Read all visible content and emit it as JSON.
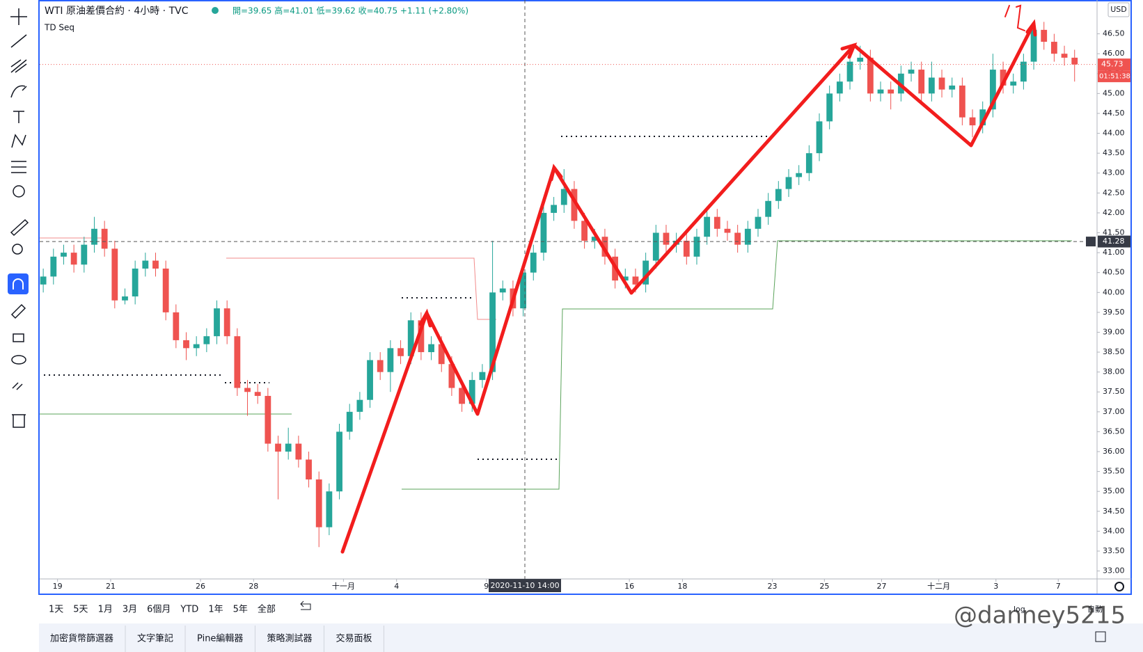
{
  "header": {
    "symbol": "WTI 原油差價合約 · 4小時 · TVC",
    "ohlc": "開=39.65 高=41.01 低=39.62 收=40.75 +1.11 (+2.80%)",
    "indicator": "TD Seq"
  },
  "chart_data": {
    "type": "candlestick",
    "currency": "USD",
    "up_color": "#26a69a",
    "down_color": "#ef5350",
    "candles": [
      [
        40.2,
        40.6,
        40.0,
        40.4
      ],
      [
        40.4,
        41.1,
        40.2,
        40.9
      ],
      [
        40.9,
        41.2,
        40.7,
        41.0
      ],
      [
        41.0,
        41.2,
        40.5,
        40.7
      ],
      [
        40.7,
        41.4,
        40.5,
        41.2
      ],
      [
        41.2,
        41.9,
        41.0,
        41.6
      ],
      [
        41.6,
        41.8,
        40.9,
        41.1
      ],
      [
        41.1,
        41.3,
        39.6,
        39.8
      ],
      [
        39.8,
        40.1,
        39.7,
        39.9
      ],
      [
        39.9,
        40.8,
        39.7,
        40.6
      ],
      [
        40.6,
        41.0,
        40.4,
        40.8
      ],
      [
        40.8,
        41.0,
        40.4,
        40.6
      ],
      [
        40.6,
        40.8,
        39.3,
        39.5
      ],
      [
        39.5,
        39.7,
        38.6,
        38.8
      ],
      [
        38.8,
        39.0,
        38.3,
        38.6
      ],
      [
        38.6,
        38.9,
        38.4,
        38.7
      ],
      [
        38.7,
        39.1,
        38.5,
        38.9
      ],
      [
        38.9,
        39.8,
        38.7,
        39.6
      ],
      [
        39.6,
        39.8,
        38.7,
        38.9
      ],
      [
        38.9,
        39.1,
        37.4,
        37.6
      ],
      [
        37.6,
        37.8,
        36.9,
        37.5
      ],
      [
        37.5,
        37.7,
        37.2,
        37.4
      ],
      [
        37.4,
        37.6,
        36.0,
        36.2
      ],
      [
        36.2,
        36.4,
        34.8,
        36.0
      ],
      [
        36.0,
        36.6,
        35.8,
        36.2
      ],
      [
        36.2,
        36.4,
        35.6,
        35.8
      ],
      [
        35.8,
        36.0,
        35.1,
        35.3
      ],
      [
        35.3,
        35.5,
        33.6,
        34.1
      ],
      [
        34.1,
        35.2,
        33.9,
        35.0
      ],
      [
        35.0,
        36.7,
        34.8,
        36.5
      ],
      [
        36.5,
        37.2,
        36.3,
        37.0
      ],
      [
        37.0,
        37.5,
        36.8,
        37.3
      ],
      [
        37.3,
        38.5,
        37.1,
        38.3
      ],
      [
        38.3,
        38.5,
        37.8,
        38.0
      ],
      [
        38.0,
        38.8,
        37.5,
        38.6
      ],
      [
        38.6,
        38.8,
        38.2,
        38.4
      ],
      [
        38.4,
        39.5,
        38.2,
        39.3
      ],
      [
        39.3,
        39.5,
        38.3,
        38.5
      ],
      [
        38.5,
        38.9,
        38.3,
        38.7
      ],
      [
        38.7,
        38.9,
        38.0,
        38.2
      ],
      [
        38.2,
        38.4,
        37.4,
        37.6
      ],
      [
        37.6,
        37.8,
        37.0,
        37.2
      ],
      [
        37.2,
        38.0,
        37.0,
        37.8
      ],
      [
        37.8,
        38.2,
        37.6,
        38.0
      ],
      [
        38.0,
        41.3,
        37.8,
        40.0
      ],
      [
        40.0,
        40.3,
        39.8,
        40.1
      ],
      [
        40.1,
        40.3,
        39.4,
        39.6
      ],
      [
        39.6,
        40.7,
        39.4,
        40.5
      ],
      [
        40.5,
        41.2,
        40.3,
        41.0
      ],
      [
        41.0,
        42.2,
        40.8,
        42.0
      ],
      [
        42.0,
        42.4,
        41.8,
        42.2
      ],
      [
        42.2,
        43.1,
        42.0,
        42.6
      ],
      [
        42.6,
        42.8,
        41.6,
        41.8
      ],
      [
        41.8,
        42.0,
        41.1,
        41.3
      ],
      [
        41.3,
        41.6,
        41.1,
        41.4
      ],
      [
        41.4,
        41.6,
        40.7,
        40.9
      ],
      [
        40.9,
        41.1,
        40.1,
        40.3
      ],
      [
        40.3,
        40.6,
        40.1,
        40.4
      ],
      [
        40.4,
        40.6,
        40.0,
        40.2
      ],
      [
        40.2,
        41.0,
        40.0,
        40.8
      ],
      [
        40.8,
        41.7,
        40.6,
        41.5
      ],
      [
        41.5,
        41.7,
        41.0,
        41.2
      ],
      [
        41.2,
        41.5,
        41.0,
        41.3
      ],
      [
        41.3,
        41.5,
        40.7,
        40.9
      ],
      [
        40.9,
        41.6,
        40.7,
        41.4
      ],
      [
        41.4,
        42.1,
        41.2,
        41.9
      ],
      [
        41.9,
        42.1,
        41.4,
        41.6
      ],
      [
        41.6,
        41.8,
        41.3,
        41.5
      ],
      [
        41.5,
        41.7,
        41.0,
        41.2
      ],
      [
        41.2,
        41.8,
        41.0,
        41.6
      ],
      [
        41.6,
        42.1,
        41.4,
        41.9
      ],
      [
        41.9,
        42.5,
        41.7,
        42.3
      ],
      [
        42.3,
        42.8,
        42.1,
        42.6
      ],
      [
        42.6,
        43.1,
        42.4,
        42.9
      ],
      [
        42.9,
        43.2,
        42.7,
        43.0
      ],
      [
        43.0,
        43.7,
        42.8,
        43.5
      ],
      [
        43.5,
        44.5,
        43.3,
        44.3
      ],
      [
        44.3,
        45.2,
        44.1,
        45.0
      ],
      [
        45.0,
        45.5,
        44.8,
        45.3
      ],
      [
        45.3,
        46.0,
        45.1,
        45.8
      ],
      [
        45.8,
        46.2,
        45.6,
        45.9
      ],
      [
        45.9,
        46.1,
        44.8,
        45.0
      ],
      [
        45.0,
        45.3,
        44.8,
        45.1
      ],
      [
        45.1,
        45.3,
        44.6,
        45.0
      ],
      [
        45.0,
        45.7,
        44.8,
        45.5
      ],
      [
        45.5,
        45.8,
        45.3,
        45.6
      ],
      [
        45.6,
        45.8,
        44.8,
        45.0
      ],
      [
        45.0,
        45.8,
        44.8,
        45.4
      ],
      [
        45.4,
        45.6,
        44.9,
        45.1
      ],
      [
        45.1,
        45.4,
        44.9,
        45.2
      ],
      [
        45.2,
        45.4,
        44.2,
        44.4
      ],
      [
        44.4,
        44.6,
        43.9,
        44.2
      ],
      [
        44.2,
        44.8,
        44.0,
        44.6
      ],
      [
        44.6,
        46.0,
        44.4,
        45.6
      ],
      [
        45.6,
        45.8,
        45.0,
        45.2
      ],
      [
        45.2,
        45.5,
        45.0,
        45.3
      ],
      [
        45.3,
        46.0,
        45.1,
        45.8
      ],
      [
        45.8,
        46.8,
        45.6,
        46.6
      ],
      [
        46.6,
        46.8,
        46.1,
        46.3
      ],
      [
        46.3,
        46.5,
        45.8,
        46.0
      ],
      [
        46.0,
        46.2,
        45.7,
        45.9
      ],
      [
        45.9,
        46.1,
        45.3,
        45.73
      ]
    ],
    "xlim": [
      -0.35,
      103.2
    ],
    "xticks": [
      {
        "value": 1.4,
        "label": "19"
      },
      {
        "value": 6.6,
        "label": "21"
      },
      {
        "value": 15.4,
        "label": "26"
      },
      {
        "value": 20.6,
        "label": "28"
      },
      {
        "value": 29.4,
        "label": "十一月"
      },
      {
        "value": 34.6,
        "label": "4"
      },
      {
        "value": 43.4,
        "label": "9"
      },
      {
        "value": 57.4,
        "label": "16"
      },
      {
        "value": 62.6,
        "label": "18"
      },
      {
        "value": 71.4,
        "label": "23"
      },
      {
        "value": 76.5,
        "label": "25"
      },
      {
        "value": 82.1,
        "label": "27"
      },
      {
        "value": 87.7,
        "label": "十二月"
      },
      {
        "value": 93.3,
        "label": "3"
      },
      {
        "value": 99.4,
        "label": "7"
      }
    ],
    "ylim": [
      32.8,
      47.35
    ],
    "yticks": [
      {
        "value": 33,
        "label": "33.00"
      },
      {
        "value": 33.5,
        "label": "33.50"
      },
      {
        "value": 34,
        "label": "34.00"
      },
      {
        "value": 34.5,
        "label": "34.50"
      },
      {
        "value": 35,
        "label": "35.00"
      },
      {
        "value": 35.5,
        "label": "35.50"
      },
      {
        "value": 36,
        "label": "36.00"
      },
      {
        "value": 36.5,
        "label": "36.50"
      },
      {
        "value": 37,
        "label": "37.00"
      },
      {
        "value": 37.5,
        "label": "37.50"
      },
      {
        "value": 38,
        "label": "38.00"
      },
      {
        "value": 38.5,
        "label": "38.50"
      },
      {
        "value": 39,
        "label": "39.00"
      },
      {
        "value": 39.5,
        "label": "39.50"
      },
      {
        "value": 40,
        "label": "40.00"
      },
      {
        "value": 40.5,
        "label": "40.50"
      },
      {
        "value": 41,
        "label": "41.00"
      },
      {
        "value": 41.5,
        "label": "41.50"
      },
      {
        "value": 42,
        "label": "42.00"
      },
      {
        "value": 42.5,
        "label": "42.50"
      },
      {
        "value": 43,
        "label": "43.00"
      },
      {
        "value": 43.5,
        "label": "43.50"
      },
      {
        "value": 44,
        "label": "44.00"
      },
      {
        "value": 44.5,
        "label": "44.50"
      },
      {
        "value": 45,
        "label": "45.00"
      },
      {
        "value": 45.5,
        "label": "45.50"
      },
      {
        "value": 46,
        "label": "46.00"
      },
      {
        "value": 46.5,
        "label": "46.50"
      }
    ],
    "grid": false,
    "last_price": 45.73,
    "countdown": "01:51:38",
    "crosshair": {
      "price": 41.28,
      "time": "2020-11-10  14:00"
    }
  },
  "timeframes": [
    "1天",
    "5天",
    "1月",
    "3月",
    "6個月",
    "YTD",
    "1年",
    "5年",
    "全部"
  ],
  "scale_options": [
    "log",
    "自動"
  ],
  "tabs": [
    "加密貨幣篩選器",
    "文字筆記",
    "Pine編輯器",
    "策略測試器",
    "交易面板"
  ],
  "watermark": "@danney5215"
}
